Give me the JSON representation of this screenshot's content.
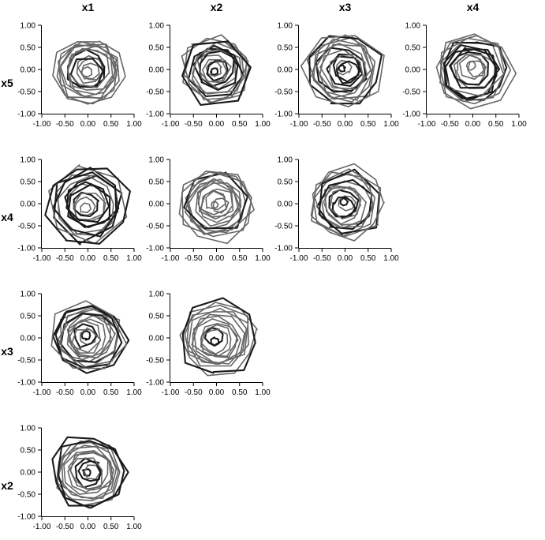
{
  "chart_data": {
    "type": "scatter",
    "description_mode": "scatterplot-matrix",
    "column_labels": [
      "x1",
      "x2",
      "x3",
      "x4"
    ],
    "row_labels": [
      "x5",
      "x4",
      "x3",
      "x2"
    ],
    "xlim": [
      -1.0,
      1.0
    ],
    "ylim": [
      -1.0,
      1.0
    ],
    "x_ticks": [
      "-1.00",
      "-0.50",
      "0.00",
      "0.50",
      "1.00"
    ],
    "y_ticks": [
      "1.00",
      "0.50",
      "0.00",
      "-0.50",
      "-1.00"
    ],
    "grid": false,
    "legend": "none",
    "colors": {
      "trace_light": "#666666",
      "trace_dark": "#1a1a1a",
      "axis": "#000000"
    },
    "panels": [
      {
        "row": "x5",
        "col": "x1",
        "seed": 11,
        "max_r": 0.78,
        "min_r": 0.12,
        "loops": 14,
        "center": [
          0.02,
          -0.02
        ]
      },
      {
        "row": "x5",
        "col": "x2",
        "seed": 23,
        "max_r": 0.82,
        "min_r": 0.08,
        "loops": 15,
        "center": [
          0.0,
          -0.02
        ]
      },
      {
        "row": "x5",
        "col": "x3",
        "seed": 37,
        "max_r": 0.88,
        "min_r": 0.08,
        "loops": 15,
        "center": [
          -0.02,
          0.0
        ]
      },
      {
        "row": "x5",
        "col": "x4",
        "seed": 41,
        "max_r": 0.88,
        "min_r": 0.1,
        "loops": 14,
        "center": [
          0.0,
          0.0
        ]
      },
      {
        "row": "x4",
        "col": "x1",
        "seed": 53,
        "max_r": 0.9,
        "min_r": 0.12,
        "loops": 14,
        "center": [
          0.0,
          -0.02
        ]
      },
      {
        "row": "x4",
        "col": "x2",
        "seed": 67,
        "max_r": 0.85,
        "min_r": 0.08,
        "loops": 15,
        "center": [
          0.0,
          0.0
        ]
      },
      {
        "row": "x4",
        "col": "x3",
        "seed": 71,
        "max_r": 0.85,
        "min_r": 0.08,
        "loops": 14,
        "center": [
          0.02,
          0.0
        ]
      },
      {
        "row": "x3",
        "col": "x1",
        "seed": 83,
        "max_r": 0.85,
        "min_r": 0.1,
        "loops": 15,
        "center": [
          0.0,
          0.0
        ]
      },
      {
        "row": "x3",
        "col": "x2",
        "seed": 97,
        "max_r": 0.87,
        "min_r": 0.1,
        "loops": 13,
        "center": [
          0.0,
          0.0
        ]
      },
      {
        "row": "x2",
        "col": "x1",
        "seed": 101,
        "max_r": 0.85,
        "min_r": 0.08,
        "loops": 14,
        "center": [
          0.02,
          0.0
        ]
      }
    ]
  }
}
